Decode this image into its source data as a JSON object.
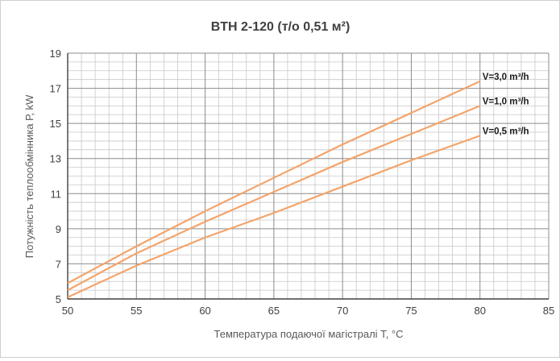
{
  "chart_data": {
    "type": "line",
    "title": "BTH 2-120 (т/о 0,51 м²)",
    "xlabel": "Температура подаючої магістралі Т, °С",
    "ylabel": "Потужність теплообмінника Р, kW",
    "xlim": [
      50,
      85
    ],
    "ylim": [
      5,
      19
    ],
    "x_ticks": [
      50,
      55,
      60,
      65,
      70,
      75,
      80,
      85
    ],
    "y_ticks": [
      5,
      7,
      9,
      11,
      13,
      15,
      17,
      19
    ],
    "x_tick_labels": [
      "50",
      "55",
      "60",
      "65",
      "70",
      "75",
      "80",
      "85"
    ],
    "y_tick_labels": [
      "5",
      "7",
      "9",
      "11",
      "13",
      "15",
      "17",
      "19"
    ],
    "grid": true,
    "legend": "inline labels at line ends",
    "series_color": "#f4a46a",
    "series": [
      {
        "name": "V=3,0 m³/h",
        "x": [
          50,
          55,
          60,
          65,
          70,
          75,
          80
        ],
        "y": [
          5.9,
          8.0,
          10.0,
          11.9,
          13.8,
          15.6,
          17.4
        ]
      },
      {
        "name": "V=1,0 m³/h",
        "x": [
          50,
          55,
          60,
          65,
          70,
          75,
          80
        ],
        "y": [
          5.5,
          7.6,
          9.4,
          11.1,
          12.8,
          14.4,
          16.0
        ]
      },
      {
        "name": "V=0,5 m³/h",
        "x": [
          50,
          55,
          60,
          65,
          70,
          75,
          80
        ],
        "y": [
          5.1,
          6.9,
          8.5,
          9.9,
          11.4,
          12.9,
          14.3
        ]
      }
    ]
  }
}
